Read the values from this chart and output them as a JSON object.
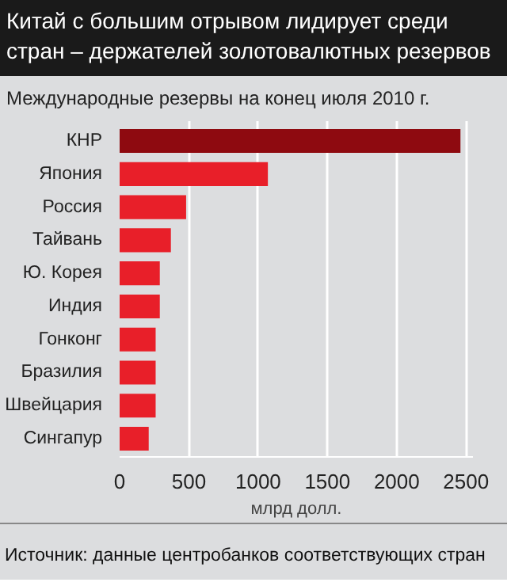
{
  "chart_data": {
    "type": "bar",
    "orientation": "horizontal",
    "title": "Китай с большим отрывом лидирует среди стран – держателей золотовалютных резервов",
    "subtitle": "Международные резервы на конец июля 2010 г.",
    "xlabel": "млрд долл.",
    "categories": [
      "КНР",
      "Япония",
      "Россия",
      "Тайвань",
      "Ю. Корея",
      "Индия",
      "Гонконг",
      "Бразилия",
      "Швейцария",
      "Сингапур"
    ],
    "values": [
      2460,
      1070,
      480,
      370,
      290,
      290,
      260,
      260,
      260,
      210
    ],
    "colors": [
      "#8e0a10",
      "#e81f29",
      "#e81f29",
      "#e81f29",
      "#e81f29",
      "#e81f29",
      "#e81f29",
      "#e81f29",
      "#e81f29",
      "#e81f29"
    ],
    "xlim": [
      0,
      2550
    ],
    "xticks": [
      0,
      500,
      1000,
      1500,
      2000,
      2500
    ],
    "grid": "x",
    "annotations": [
      "Источник: данные центробанков соответствующих стран"
    ]
  }
}
